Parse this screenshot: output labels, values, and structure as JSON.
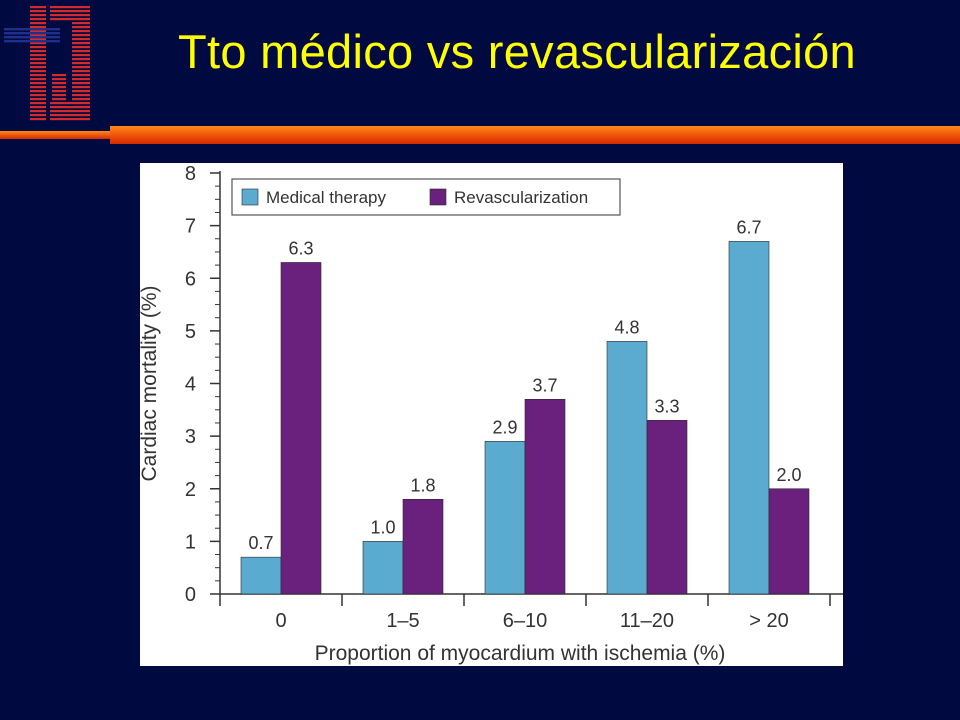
{
  "slide": {
    "title": "Tto médico vs revascularización"
  },
  "colors": {
    "background": "#000a40",
    "title": "#ffff00",
    "accent_bar": "#f25a0c",
    "logo_red": "#d42a2a",
    "logo_blue": "#1e2f8c"
  },
  "chart_data": {
    "type": "bar",
    "categories": [
      "0",
      "1–5",
      "6–10",
      "11–20",
      "> 20"
    ],
    "series": [
      {
        "name": "Medical therapy",
        "color": "#5aabcf",
        "values": [
          0.7,
          1.0,
          2.9,
          4.8,
          6.7
        ],
        "labels": [
          "0.7",
          "1.0",
          "2.9",
          "4.8",
          "6.7"
        ]
      },
      {
        "name": "Revascularization",
        "color": "#6a217d",
        "values": [
          6.3,
          1.8,
          3.7,
          3.3,
          2.0
        ],
        "labels": [
          "6.3",
          "1.8",
          "3.7",
          "3.3",
          "2.0"
        ]
      }
    ],
    "xlabel": "Proportion of myocardium with ischemia (%)",
    "ylabel": "Cardiac mortality (%)",
    "ylim": [
      0,
      8
    ],
    "yticks": [
      "0",
      "1",
      "2",
      "3",
      "4",
      "5",
      "6",
      "7",
      "8"
    ],
    "legend_position": "top-left",
    "grid": false
  }
}
